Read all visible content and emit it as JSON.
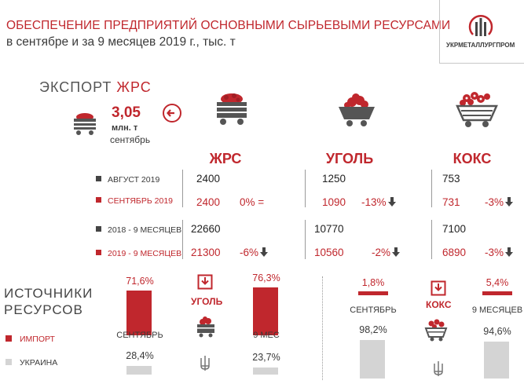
{
  "header": {
    "title_line1": "ОБЕСПЕЧЕНИЕ ПРЕДПРИЯТИЙ ОСНОВНЫМИ СЫРЬЕВЫМИ РЕСУРСАМИ",
    "title_line2": "в сентябре и за 9 месяцев 2019 г., тыс. т",
    "logo_text": "УКРМЕТАЛЛУРГПРОМ"
  },
  "export": {
    "title_part1": "ЭКСПОРТ",
    "title_part2": "ЖРС",
    "value": "3,05",
    "unit": "млн. т",
    "period": "сентябрь"
  },
  "table": {
    "columns": [
      "ЖРС",
      "УГОЛЬ",
      "КОКС"
    ],
    "rows": [
      {
        "label": "АВГУСТ 2019",
        "highlight": false,
        "cells": [
          {
            "value": "2400",
            "change": ""
          },
          {
            "value": "1250",
            "change": ""
          },
          {
            "value": "753",
            "change": ""
          }
        ]
      },
      {
        "label": "СЕНТЯБРЬ 2019",
        "highlight": true,
        "cells": [
          {
            "value": "2400",
            "change": "0% ="
          },
          {
            "value": "1090",
            "change": "-13%"
          },
          {
            "value": "731",
            "change": "-3%"
          }
        ]
      },
      {
        "label": "2018 - 9 МЕСЯЦЕВ",
        "highlight": false,
        "cells": [
          {
            "value": "22660",
            "change": ""
          },
          {
            "value": "10770",
            "change": ""
          },
          {
            "value": "7100",
            "change": ""
          }
        ]
      },
      {
        "label": "2019 - 9 МЕСЯЦЕВ",
        "highlight": true,
        "cells": [
          {
            "value": "21300",
            "change": "-6%"
          },
          {
            "value": "10560",
            "change": "-2%"
          },
          {
            "value": "6890",
            "change": "-3%"
          }
        ]
      }
    ]
  },
  "sources": {
    "title_line1": "ИСТОЧНИКИ",
    "title_line2": "РЕСУРСОВ",
    "legend": [
      {
        "label": "ИМПОРТ",
        "color": "#c0272d"
      },
      {
        "label": "УКРАИНА",
        "color": "#d4d4d4"
      }
    ],
    "coal_label": "УГОЛЬ",
    "coke_label": "КОКС",
    "period_september": "СЕНТЯБРЬ",
    "period_9m_short": "9 МЕС",
    "period_9m": "9 МЕСЯЦЕВ"
  },
  "chart_data": [
    {
      "type": "bar",
      "categories": [
        "СЕНТЯБРЬ",
        "9 МЕС"
      ],
      "series": [
        {
          "name": "ИМПОРТ",
          "values": [
            71.6,
            76.3
          ],
          "labels": [
            "71,6%",
            "76,3%"
          ]
        },
        {
          "name": "УКРАИНА",
          "values": [
            28.4,
            23.7
          ],
          "labels": [
            "28,4%",
            "23,7%"
          ]
        }
      ],
      "title": "УГОЛЬ",
      "ylim": [
        0,
        100
      ]
    },
    {
      "type": "bar",
      "categories": [
        "СЕНТЯБРЬ",
        "9 МЕСЯЦЕВ"
      ],
      "series": [
        {
          "name": "ИМПОРТ",
          "values": [
            1.8,
            5.4
          ],
          "labels": [
            "1,8%",
            "5,4%"
          ]
        },
        {
          "name": "УКРАИНА",
          "values": [
            98.2,
            94.6
          ],
          "labels": [
            "98,2%",
            "94,6%"
          ]
        }
      ],
      "title": "КОКС",
      "ylim": [
        0,
        100
      ]
    }
  ],
  "colors": {
    "accent": "#c0272d",
    "text": "#3a3a3a",
    "bar_light": "#d4d4d4"
  }
}
